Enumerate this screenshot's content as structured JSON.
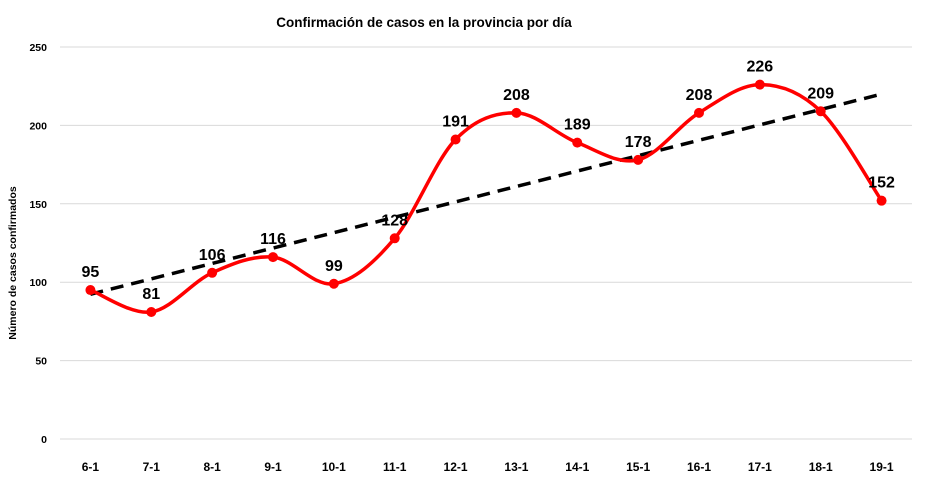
{
  "chart_data": {
    "type": "line",
    "title": "Confirmación de casos en la provincia por día",
    "xlabel": "",
    "ylabel": "Número de casos confirmados",
    "categories": [
      "6-1",
      "7-1",
      "8-1",
      "9-1",
      "10-1",
      "11-1",
      "12-1",
      "13-1",
      "14-1",
      "15-1",
      "16-1",
      "17-1",
      "18-1",
      "19-1"
    ],
    "values": [
      95,
      81,
      106,
      116,
      99,
      128,
      191,
      208,
      189,
      178,
      208,
      226,
      209,
      152
    ],
    "ylim": [
      0,
      250
    ],
    "yticks": [
      0,
      50,
      100,
      150,
      200,
      250
    ],
    "grid": true,
    "smooth": true,
    "data_labels": true,
    "trendline": "linear",
    "colors": {
      "series": "#ff0000",
      "trendline": "#000000",
      "grid": "#d9d9d9"
    }
  }
}
